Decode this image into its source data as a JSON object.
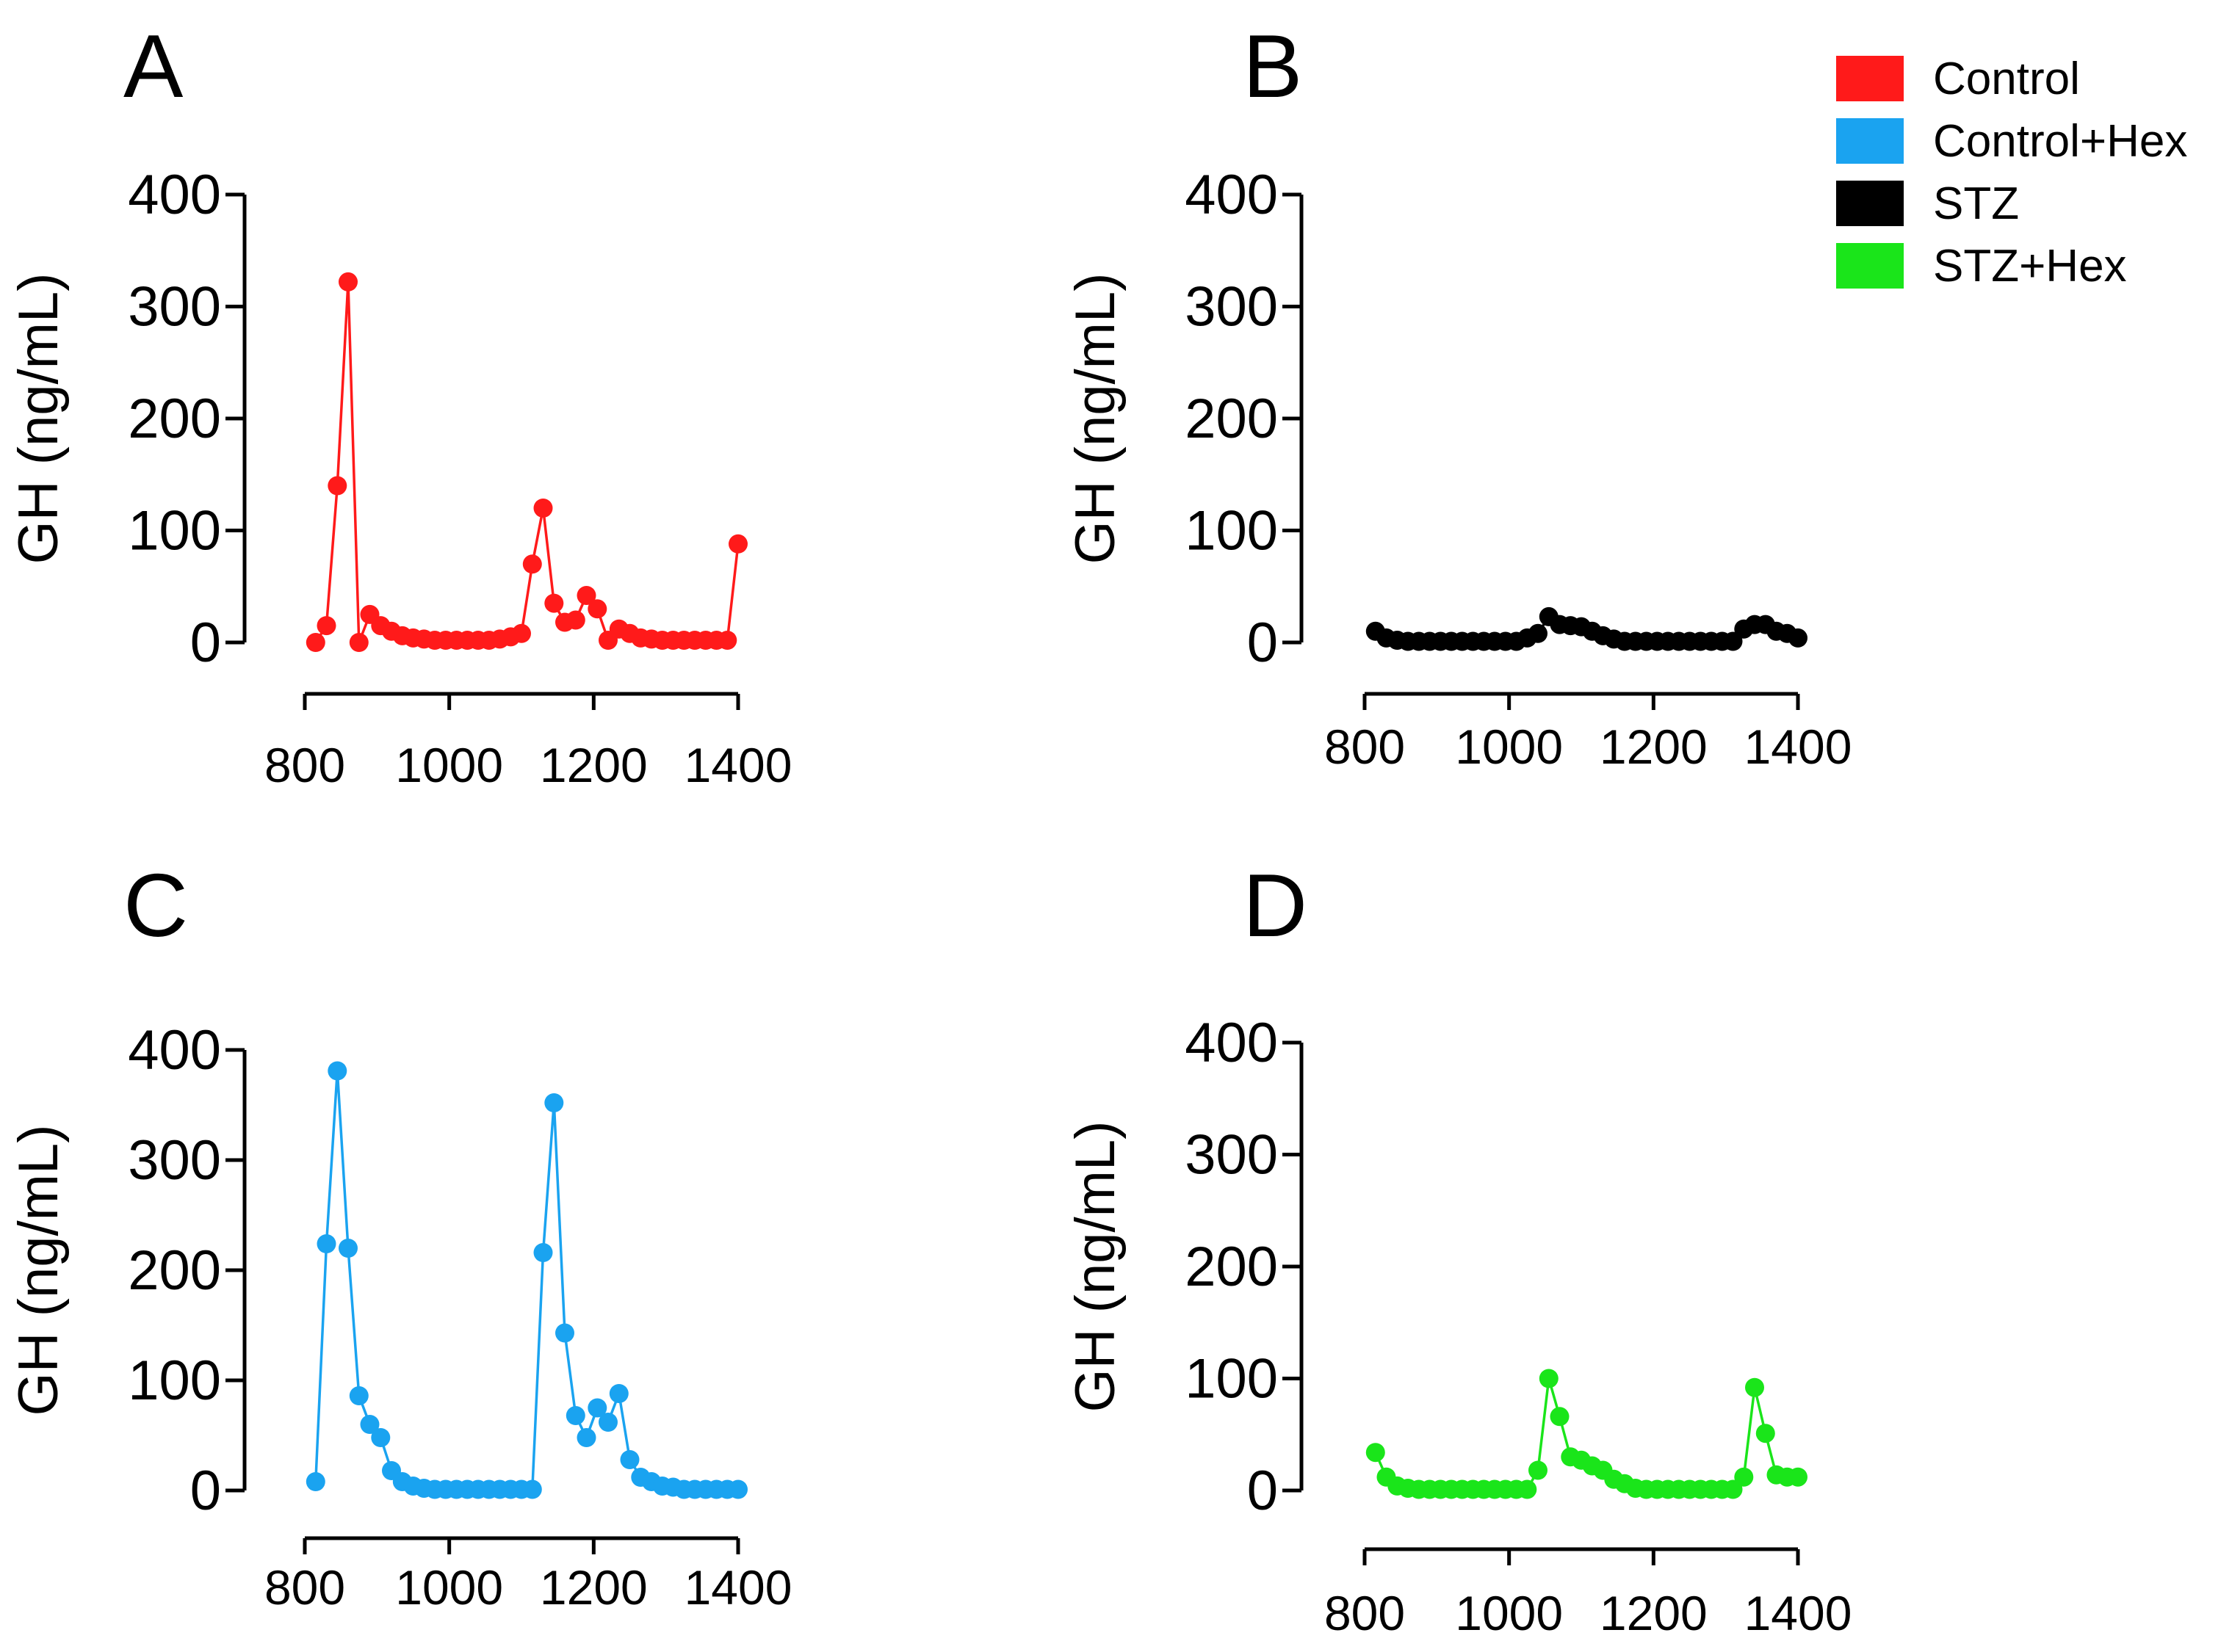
{
  "legend": [
    {
      "label": "Control",
      "color": "#ff1a1a"
    },
    {
      "label": "Control+Hex",
      "color": "#1aa3f0"
    },
    {
      "label": "STZ",
      "color": "#000000"
    },
    {
      "label": "STZ+Hex",
      "color": "#1ae51a"
    }
  ],
  "chart_data": [
    {
      "type": "line",
      "panel": "A",
      "title": "",
      "ylabel": "GH (ng/mL)",
      "xlabel": "",
      "color": "#ff1a1a",
      "ylim": [
        0,
        400
      ],
      "xlim": [
        800,
        1400
      ],
      "yticks": [
        "0",
        "100",
        "200",
        "300",
        "400"
      ],
      "xticks": [
        "800",
        "1000",
        "1200",
        "1400"
      ],
      "x": [
        815,
        830,
        845,
        860,
        875,
        890,
        905,
        920,
        935,
        950,
        965,
        980,
        995,
        1010,
        1025,
        1040,
        1055,
        1070,
        1085,
        1100,
        1115,
        1130,
        1145,
        1160,
        1175,
        1190,
        1205,
        1220,
        1235,
        1250,
        1265,
        1280,
        1295,
        1310,
        1325,
        1340,
        1355,
        1370,
        1385,
        1400
      ],
      "values": [
        0,
        15,
        140,
        322,
        0,
        25,
        15,
        10,
        6,
        4,
        3,
        2,
        2,
        2,
        2,
        2,
        2,
        3,
        5,
        8,
        70,
        120,
        35,
        18,
        20,
        42,
        30,
        2,
        12,
        8,
        4,
        3,
        2,
        2,
        2,
        2,
        2,
        2,
        2,
        88
      ]
    },
    {
      "type": "line",
      "panel": "B",
      "title": "",
      "ylabel": "GH (ng/mL)",
      "xlabel": "",
      "color": "#000000",
      "ylim": [
        0,
        400
      ],
      "xlim": [
        800,
        1400
      ],
      "yticks": [
        "0",
        "100",
        "200",
        "300",
        "400"
      ],
      "xticks": [
        "800",
        "1000",
        "1200",
        "1400"
      ],
      "x": [
        815,
        830,
        845,
        860,
        875,
        890,
        905,
        920,
        935,
        950,
        965,
        980,
        995,
        1010,
        1025,
        1040,
        1055,
        1070,
        1085,
        1100,
        1115,
        1130,
        1145,
        1160,
        1175,
        1190,
        1205,
        1220,
        1235,
        1250,
        1265,
        1280,
        1295,
        1310,
        1325,
        1340,
        1355,
        1370,
        1385,
        1400
      ],
      "values": [
        10,
        4,
        2,
        1,
        1,
        1,
        1,
        1,
        1,
        1,
        1,
        1,
        1,
        1,
        4,
        8,
        23,
        16,
        15,
        14,
        10,
        6,
        3,
        1,
        1,
        1,
        1,
        1,
        1,
        1,
        1,
        1,
        1,
        1,
        12,
        16,
        16,
        10,
        8,
        4
      ]
    },
    {
      "type": "line",
      "panel": "C",
      "title": "",
      "ylabel": "GH (ng/mL)",
      "xlabel": "",
      "color": "#1aa3f0",
      "ylim": [
        0,
        400
      ],
      "xlim": [
        800,
        1400
      ],
      "yticks": [
        "0",
        "100",
        "200",
        "300",
        "400"
      ],
      "xticks": [
        "800",
        "1000",
        "1200",
        "1400"
      ],
      "x": [
        815,
        830,
        845,
        860,
        875,
        890,
        905,
        920,
        935,
        950,
        965,
        980,
        995,
        1010,
        1025,
        1040,
        1055,
        1070,
        1085,
        1100,
        1115,
        1130,
        1145,
        1160,
        1175,
        1190,
        1205,
        1220,
        1235,
        1250,
        1265,
        1280,
        1295,
        1310,
        1325,
        1340,
        1355,
        1370,
        1385,
        1400
      ],
      "values": [
        8,
        224,
        381,
        220,
        86,
        60,
        48,
        18,
        8,
        4,
        2,
        1,
        1,
        1,
        1,
        1,
        1,
        1,
        1,
        1,
        1,
        216,
        352,
        143,
        68,
        48,
        75,
        62,
        88,
        28,
        12,
        8,
        4,
        3,
        1,
        1,
        1,
        1,
        1,
        1
      ]
    },
    {
      "type": "line",
      "panel": "D",
      "title": "",
      "ylabel": "GH (ng/mL)",
      "xlabel": "",
      "color": "#1ae51a",
      "ylim": [
        0,
        400
      ],
      "xlim": [
        800,
        1400
      ],
      "yticks": [
        "0",
        "100",
        "200",
        "300",
        "400"
      ],
      "xticks": [
        "800",
        "1000",
        "1200",
        "1400"
      ],
      "x": [
        815,
        830,
        845,
        860,
        875,
        890,
        905,
        920,
        935,
        950,
        965,
        980,
        995,
        1010,
        1025,
        1040,
        1055,
        1070,
        1085,
        1100,
        1115,
        1130,
        1145,
        1160,
        1175,
        1190,
        1205,
        1220,
        1235,
        1250,
        1265,
        1280,
        1295,
        1310,
        1325,
        1340,
        1355,
        1370,
        1385,
        1400
      ],
      "values": [
        34,
        12,
        4,
        2,
        1,
        1,
        1,
        1,
        1,
        1,
        1,
        1,
        1,
        1,
        1,
        18,
        100,
        66,
        30,
        27,
        22,
        18,
        10,
        6,
        2,
        1,
        1,
        1,
        1,
        1,
        1,
        1,
        1,
        1,
        12,
        92,
        51,
        14,
        12,
        12
      ]
    }
  ]
}
